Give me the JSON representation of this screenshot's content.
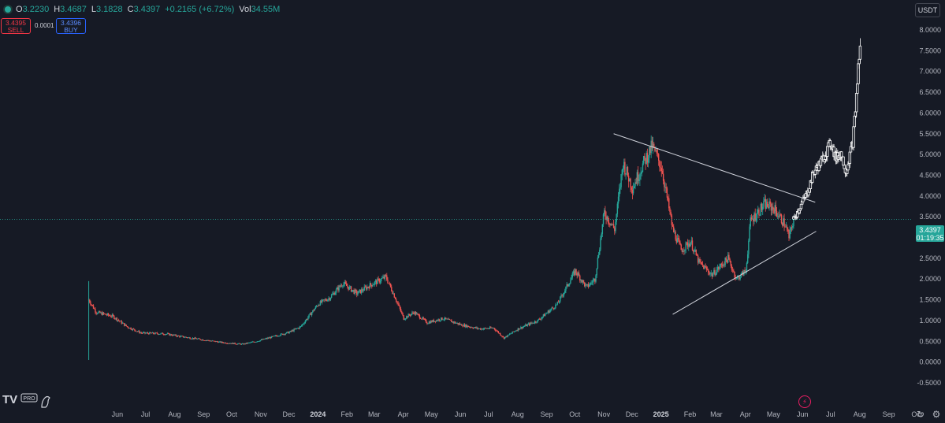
{
  "header": {
    "open_label": "O",
    "open": "3.2230",
    "high_label": "H",
    "high": "3.4687",
    "low_label": "L",
    "low": "3.1828",
    "close_label": "C",
    "close": "3.4397",
    "change": "+0.2165 (+6.72%)",
    "vol_label": "Vol",
    "vol": "34.55M"
  },
  "trade": {
    "sell_price": "3.4395",
    "sell_label": "SELL",
    "spread": "0.0001",
    "buy_price": "3.4396",
    "buy_label": "BUY"
  },
  "currency": "USDT",
  "last_price": {
    "value": "3.4397",
    "countdown": "01:19:35"
  },
  "logo_text": "PRO",
  "colors": {
    "up": "#26a69a",
    "down": "#ef5350",
    "projection": "#ffffff",
    "trendline": "#d1d4dc",
    "background": "#161a25"
  },
  "icons": [
    "gear-icon",
    "reset-icon",
    "lightning-icon"
  ],
  "chart_data": {
    "type": "candlestick",
    "ylabel": "",
    "ylim": [
      -0.5,
      8.0
    ],
    "y_ticks": [
      "8.0000",
      "7.5000",
      "7.0000",
      "6.5000",
      "6.0000",
      "5.5000",
      "5.0000",
      "4.5000",
      "4.0000",
      "3.5000",
      "3.0000",
      "2.5000",
      "2.0000",
      "1.5000",
      "1.0000",
      "0.5000",
      "0.0000",
      "-0.5000"
    ],
    "x_ticks": [
      "Jun",
      "Jul",
      "Aug",
      "Sep",
      "Oct",
      "Nov",
      "Dec",
      "2024",
      "Feb",
      "Mar",
      "Apr",
      "May",
      "Jun",
      "Jul",
      "Aug",
      "Sep",
      "Oct",
      "Nov",
      "Dec",
      "2025",
      "Feb",
      "Mar",
      "Apr",
      "May",
      "Jun",
      "Jul",
      "Aug",
      "Sep",
      "Oct"
    ],
    "x_range": [
      "2023-05-01",
      "2025-10-15"
    ],
    "price_series": [
      [
        "2023-05-20",
        1.5
      ],
      [
        "2023-05-28",
        1.2
      ],
      [
        "2023-06-15",
        1.1
      ],
      [
        "2023-06-30",
        0.85
      ],
      [
        "2023-07-15",
        0.7
      ],
      [
        "2023-08-10",
        0.68
      ],
      [
        "2023-08-25",
        0.62
      ],
      [
        "2023-09-15",
        0.55
      ],
      [
        "2023-10-10",
        0.47
      ],
      [
        "2023-10-31",
        0.43
      ],
      [
        "2023-11-15",
        0.5
      ],
      [
        "2023-12-01",
        0.6
      ],
      [
        "2023-12-20",
        0.72
      ],
      [
        "2024-01-01",
        0.85
      ],
      [
        "2024-01-20",
        1.4
      ],
      [
        "2024-02-01",
        1.55
      ],
      [
        "2024-02-15",
        1.9
      ],
      [
        "2024-03-01",
        1.65
      ],
      [
        "2024-03-15",
        1.85
      ],
      [
        "2024-04-01",
        2.05
      ],
      [
        "2024-04-10",
        1.6
      ],
      [
        "2024-04-20",
        1.05
      ],
      [
        "2024-05-01",
        1.2
      ],
      [
        "2024-05-15",
        0.95
      ],
      [
        "2024-06-01",
        1.05
      ],
      [
        "2024-06-20",
        0.9
      ],
      [
        "2024-07-10",
        0.8
      ],
      [
        "2024-07-25",
        0.82
      ],
      [
        "2024-08-05",
        0.58
      ],
      [
        "2024-08-20",
        0.8
      ],
      [
        "2024-09-10",
        1.0
      ],
      [
        "2024-10-01",
        1.4
      ],
      [
        "2024-10-20",
        2.2
      ],
      [
        "2024-11-01",
        1.8
      ],
      [
        "2024-11-10",
        2.0
      ],
      [
        "2024-11-20",
        3.6
      ],
      [
        "2024-12-01",
        3.2
      ],
      [
        "2024-12-10",
        4.8
      ],
      [
        "2024-12-20",
        4.2
      ],
      [
        "2025-01-01",
        4.8
      ],
      [
        "2025-01-10",
        5.2
      ],
      [
        "2025-01-20",
        4.7
      ],
      [
        "2025-02-01",
        3.2
      ],
      [
        "2025-02-10",
        2.7
      ],
      [
        "2025-02-20",
        2.9
      ],
      [
        "2025-03-01",
        2.4
      ],
      [
        "2025-03-15",
        2.1
      ],
      [
        "2025-04-01",
        2.5
      ],
      [
        "2025-04-10",
        2.0
      ],
      [
        "2025-04-20",
        2.2
      ],
      [
        "2025-04-25",
        3.4
      ],
      [
        "2025-05-10",
        3.8
      ],
      [
        "2025-05-20",
        3.7
      ],
      [
        "2025-06-01",
        3.3
      ],
      [
        "2025-06-05",
        3.0
      ],
      [
        "2025-06-10",
        3.44
      ]
    ],
    "projection": [
      [
        "2025-06-10",
        3.44
      ],
      [
        "2025-06-25",
        4.1
      ],
      [
        "2025-07-01",
        4.55
      ],
      [
        "2025-07-10",
        4.85
      ],
      [
        "2025-07-20",
        5.3
      ],
      [
        "2025-07-25",
        4.9
      ],
      [
        "2025-07-30",
        5.05
      ],
      [
        "2025-08-05",
        4.6
      ],
      [
        "2025-08-12",
        5.3
      ],
      [
        "2025-08-15",
        6.1
      ],
      [
        "2025-08-18",
        7.1
      ],
      [
        "2025-08-20",
        7.6
      ]
    ],
    "trendlines": [
      {
        "from": [
          "2024-11-30",
          5.5
        ],
        "to": [
          "2025-07-03",
          3.85
        ]
      },
      {
        "from": [
          "2025-02-01",
          1.15
        ],
        "to": [
          "2025-07-04",
          3.15
        ]
      }
    ],
    "last_close": 3.4397
  }
}
